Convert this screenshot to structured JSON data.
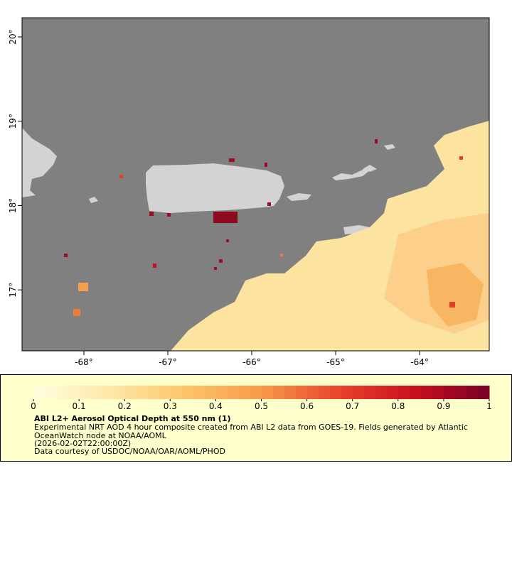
{
  "map": {
    "lon_range": [
      -68.737,
      -63.17
    ],
    "lat_range": [
      16.277,
      20.227
    ],
    "lon_ticks": [
      {
        "value": -68,
        "label": "-68°"
      },
      {
        "value": -67,
        "label": "-67°"
      },
      {
        "value": -66,
        "label": "-66°"
      },
      {
        "value": -65,
        "label": "-65°"
      },
      {
        "value": -64,
        "label": "-64°"
      }
    ],
    "lat_ticks": [
      {
        "value": 20,
        "label": "20°"
      },
      {
        "value": 19,
        "label": "19°"
      },
      {
        "value": 18,
        "label": "18°"
      },
      {
        "value": 17,
        "label": "17°"
      }
    ]
  },
  "colorbar": {
    "range": [
      0,
      1
    ],
    "ticks": [
      0,
      0.1,
      0.2,
      0.3,
      0.4,
      0.5,
      0.6,
      0.7,
      0.8,
      0.9,
      1
    ],
    "colormap": [
      "#ffffe0",
      "#fee8a8",
      "#fdc46a",
      "#f89a4a",
      "#e8452c",
      "#c8101e",
      "#7a0027"
    ]
  },
  "legend": {
    "title": "ABI L2+ Aerosol Optical Depth at 550 nm (1)",
    "lines": [
      "Experimental NRT AOD 4 hour composite created from ABI L2 data from GOES-19. Fields generated by Atlantic",
      "OceanWatch node at NOAA/AOML",
      "(2026-02-02T22:00:00Z)",
      "Data courtesy of USDOC/NOAA/OAR/AOML/PHOD"
    ]
  }
}
